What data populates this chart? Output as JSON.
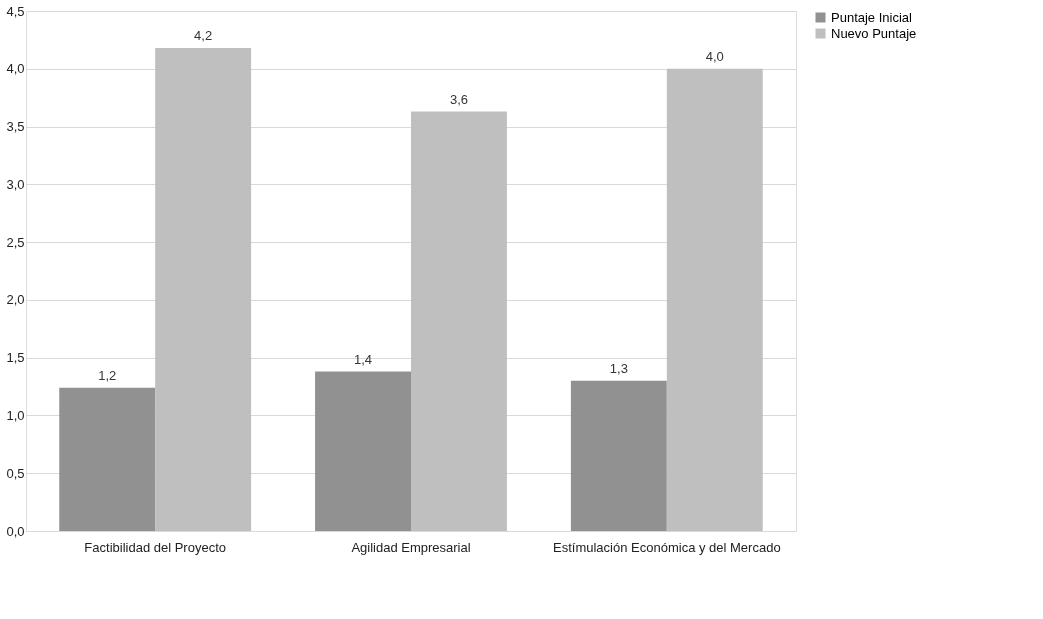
{
  "chart_data": {
    "type": "bar",
    "categories": [
      "Factibilidad del Proyecto",
      "Agilidad Empresarial",
      "Estímulación Económica y del Mercado"
    ],
    "series": [
      {
        "name": "Puntaje Inicial",
        "color": "#919191",
        "values": [
          1.24,
          1.38,
          1.3
        ],
        "value_labels": [
          "1,2",
          "1,4",
          "1,3"
        ]
      },
      {
        "name": "Nuevo Puntaje",
        "color": "#bfbfbf",
        "values": [
          4.18,
          3.63,
          4.0
        ],
        "value_labels": [
          "4,2",
          "3,6",
          "4,0"
        ]
      }
    ],
    "ylim": [
      0,
      4.5
    ],
    "yticks": [
      {
        "value": 0,
        "label": "0,0"
      },
      {
        "value": 0.5,
        "label": "0,5"
      },
      {
        "value": 1,
        "label": "1,0"
      },
      {
        "value": 1.5,
        "label": "1,5"
      },
      {
        "value": 2,
        "label": "2,0"
      },
      {
        "value": 2.5,
        "label": "2,5"
      },
      {
        "value": 3,
        "label": "3,0"
      },
      {
        "value": 3.5,
        "label": "3,5"
      },
      {
        "value": 4,
        "label": "4,0"
      },
      {
        "value": 4.5,
        "label": "4,5"
      }
    ],
    "grid": "y",
    "legend": "right"
  }
}
